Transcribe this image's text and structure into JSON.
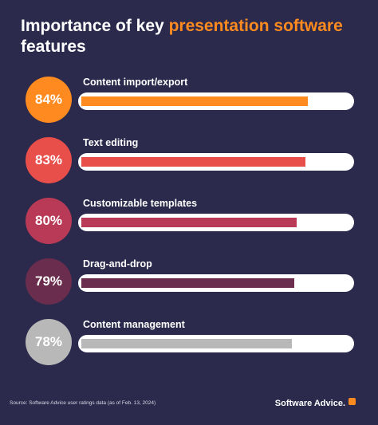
{
  "title": {
    "part1": "Importance of key ",
    "accent": "presentation software",
    "part2": "features"
  },
  "chart_data": {
    "type": "bar",
    "orientation": "horizontal",
    "title": "Importance of key presentation software features",
    "categories": [
      "Content import/export",
      "Text editing",
      "Customizable templates",
      "Drag-and-drop",
      "Content management"
    ],
    "values": [
      84,
      83,
      80,
      79,
      78
    ],
    "value_labels": [
      "84%",
      "83%",
      "80%",
      "79%",
      "78%"
    ],
    "colors": [
      "#ff8a1f",
      "#e84e4a",
      "#b83a56",
      "#6b2d4d",
      "#b8b8b8"
    ],
    "xlim": [
      0,
      100
    ],
    "grid": false,
    "legend": "none"
  },
  "footer": {
    "source": "Source: Software Advice user ratings data (as of Feb. 13, 2024)",
    "brand": "Software Advice."
  },
  "colors": {
    "background": "#2b2a4c",
    "accent": "#ff8a1f",
    "track": "#ffffff"
  }
}
